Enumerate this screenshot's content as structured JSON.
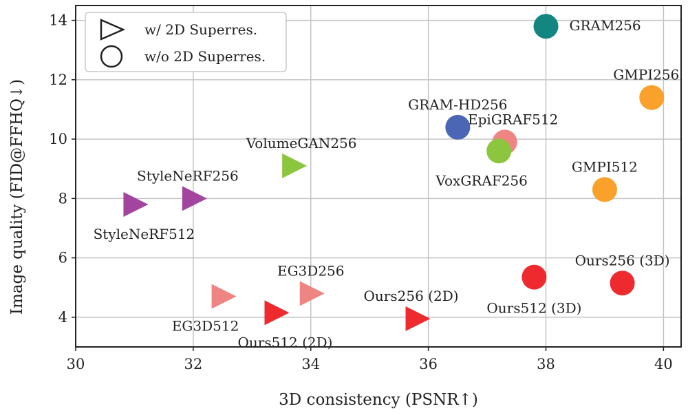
{
  "chart_data": {
    "type": "scatter",
    "xlabel": "3D consistency (PSNR↑)",
    "ylabel": "Image quality (FID@FFHQ↓)",
    "xlim": [
      30,
      40.3
    ],
    "ylim": [
      3,
      14.5
    ],
    "xticks": [
      30,
      32,
      34,
      36,
      38,
      40
    ],
    "yticks": [
      4,
      6,
      8,
      10,
      12,
      14
    ],
    "grid": true,
    "legend": {
      "placement": "top-left",
      "entries": [
        {
          "marker": "triangle",
          "label": "w/ 2D Superres."
        },
        {
          "marker": "circle",
          "label": "w/o 2D Superres."
        }
      ]
    },
    "points": [
      {
        "label": "GRAM256",
        "x": 38.0,
        "y": 13.8,
        "marker": "circle",
        "color": "#138682",
        "label_pos": "right"
      },
      {
        "label": "GMPI256",
        "x": 39.8,
        "y": 11.4,
        "marker": "circle",
        "color": "#f9a12a",
        "label_pos": "above-left"
      },
      {
        "label": "GRAM-HD256",
        "x": 36.5,
        "y": 10.4,
        "marker": "circle",
        "color": "#4a66b5",
        "label_pos": "above"
      },
      {
        "label": "EpiGRAF512",
        "x": 37.3,
        "y": 9.9,
        "marker": "circle",
        "color": "#ef8583",
        "label_pos": "above-right"
      },
      {
        "label": "VoxGRAF256",
        "x": 37.2,
        "y": 9.6,
        "marker": "circle",
        "color": "#8cc63f",
        "label_pos": "below-left"
      },
      {
        "label": "GMPI512",
        "x": 39.0,
        "y": 8.3,
        "marker": "circle",
        "color": "#f9a12a",
        "label_pos": "above"
      },
      {
        "label": "Ours256 (3D)",
        "x": 39.3,
        "y": 5.15,
        "marker": "circle",
        "color": "#ee2a2f",
        "label_pos": "above"
      },
      {
        "label": "Ours512 (3D)",
        "x": 37.8,
        "y": 5.35,
        "marker": "circle",
        "color": "#ee2a2f",
        "label_pos": "below"
      },
      {
        "label": "VolumeGAN256",
        "x": 33.7,
        "y": 9.1,
        "marker": "triangle",
        "color": "#8cc63f",
        "label_pos": "above-right"
      },
      {
        "label": "StyleNeRF256",
        "x": 32.0,
        "y": 8.0,
        "marker": "triangle",
        "color": "#a3449f",
        "label_pos": "above-left"
      },
      {
        "label": "StyleNeRF512",
        "x": 31.0,
        "y": 7.8,
        "marker": "triangle",
        "color": "#a3449f",
        "label_pos": "below-right"
      },
      {
        "label": "EG3D512",
        "x": 32.5,
        "y": 4.7,
        "marker": "triangle",
        "color": "#ef8583",
        "label_pos": "below-left"
      },
      {
        "label": "EG3D256",
        "x": 34.0,
        "y": 4.8,
        "marker": "triangle",
        "color": "#ef8583",
        "label_pos": "above"
      },
      {
        "label": "Ours512 (2D)",
        "x": 33.4,
        "y": 4.15,
        "marker": "triangle",
        "color": "#ee2a2f",
        "label_pos": "below-right"
      },
      {
        "label": "Ours256 (2D)",
        "x": 35.8,
        "y": 3.95,
        "marker": "triangle",
        "color": "#ee2a2f",
        "label_pos": "above-left"
      }
    ]
  }
}
